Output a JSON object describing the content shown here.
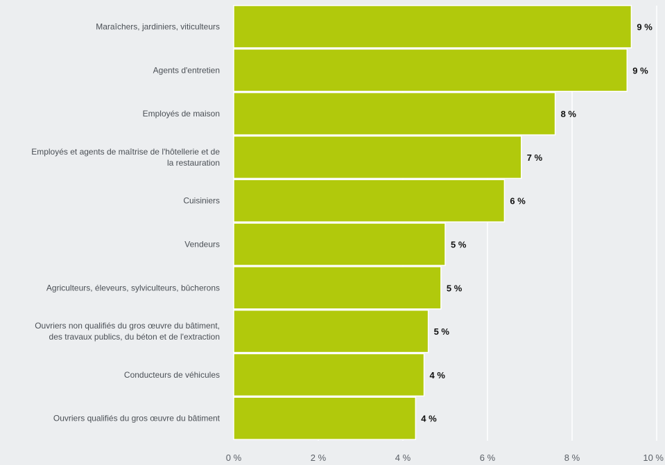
{
  "chart_data": {
    "type": "bar",
    "orientation": "horizontal",
    "categories": [
      "Maraîchers, jardiniers, viticulteurs",
      "Agents d'entretien",
      "Employés de maison",
      "Employés et agents de maîtrise de l'hôtellerie et de la restauration",
      "Cuisiniers",
      "Vendeurs",
      "Agriculteurs, éleveurs, sylviculteurs, bûcherons",
      "Ouvriers non qualifiés du gros œuvre du bâtiment, des travaux publics, du béton et de l'extraction",
      "Conducteurs de véhicules",
      "Ouvriers qualifiés du gros œuvre du bâtiment"
    ],
    "category_lines": [
      [
        "Maraîchers, jardiniers, viticulteurs"
      ],
      [
        "Agents d'entretien"
      ],
      [
        "Employés de maison"
      ],
      [
        "Employés et agents de maîtrise de l'hôtellerie et de",
        "la restauration"
      ],
      [
        "Cuisiniers"
      ],
      [
        "Vendeurs"
      ],
      [
        "Agriculteurs, éleveurs, sylviculteurs, bûcherons"
      ],
      [
        "Ouvriers non qualifiés du gros œuvre du bâtiment,",
        "des travaux publics, du béton et de l'extraction"
      ],
      [
        "Conducteurs de véhicules"
      ],
      [
        "Ouvriers qualifiés du gros œuvre du bâtiment"
      ]
    ],
    "values": [
      9.4,
      9.3,
      7.6,
      6.8,
      6.4,
      5.0,
      4.9,
      4.6,
      4.5,
      4.3
    ],
    "value_labels": [
      "9 %",
      "9 %",
      "8 %",
      "7 %",
      "6 %",
      "5 %",
      "5 %",
      "5 %",
      "4 %",
      "4 %"
    ],
    "xlim": [
      0,
      10
    ],
    "x_ticks": [
      0,
      2,
      4,
      6,
      8,
      10
    ],
    "x_tick_labels": [
      "0 %",
      "2 %",
      "4 %",
      "6 %",
      "8 %",
      "10 %"
    ],
    "grid": true,
    "legend": "none",
    "bar_color": "#b1c90c",
    "grid_color": "#ffffff",
    "background_color": "#eceef0"
  }
}
